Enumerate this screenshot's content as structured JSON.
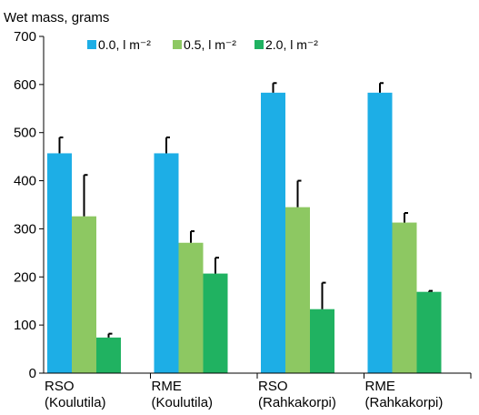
{
  "chart_data": {
    "type": "bar",
    "ylabel": "Wet mass, grams",
    "xlabel": "",
    "ylim": [
      0,
      700
    ],
    "yticks": [
      0,
      100,
      200,
      300,
      400,
      500,
      600,
      700
    ],
    "grid": false,
    "legend_position": "top",
    "categories": [
      [
        "RSO",
        "(Koulutila)"
      ],
      [
        "RME",
        "(Koulutila)"
      ],
      [
        "RSO",
        "(Rahkakorpi)"
      ],
      [
        "RME",
        "(Rahkakorpi)"
      ]
    ],
    "series": [
      {
        "name": "0.0, l m⁻²",
        "color": "#1daee6",
        "values": [
          457,
          457,
          583,
          583
        ],
        "errors": [
          33,
          33,
          20,
          20
        ]
      },
      {
        "name": "0.5, l m⁻²",
        "color": "#8dc862",
        "values": [
          326,
          271,
          345,
          313
        ],
        "errors": [
          86,
          24,
          55,
          20
        ]
      },
      {
        "name": "2.0, l m⁻²",
        "color": "#20b261",
        "values": [
          74,
          207,
          133,
          169
        ],
        "errors": [
          8,
          33,
          55,
          2
        ]
      }
    ]
  }
}
